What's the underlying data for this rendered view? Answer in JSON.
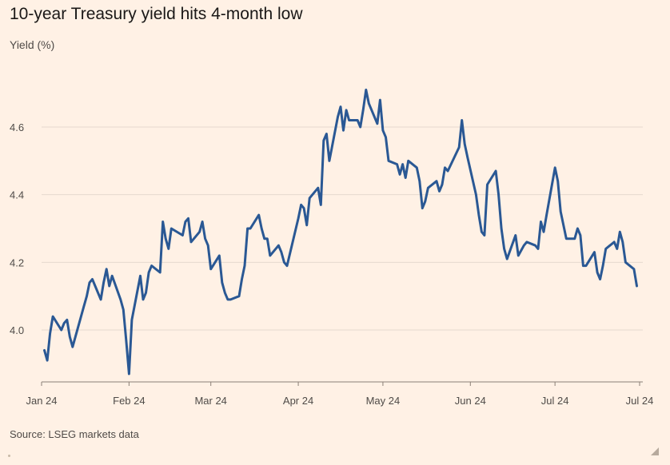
{
  "header": {
    "title": "10-year Treasury yield hits 4-month low",
    "subtitle": "Yield (%)"
  },
  "footer": {
    "source": "Source: LSEG markets data"
  },
  "icons": [
    "resize-handle-icon"
  ],
  "colors": {
    "background": "#fff1e5",
    "line": "#2a5894",
    "grid": "#e6d9ce",
    "axis": "#4f4b48"
  },
  "chart_data": {
    "type": "line",
    "title": "10-year Treasury yield hits 4-month low",
    "ylabel": "Yield (%)",
    "xlabel": "",
    "ylim": [
      3.86,
      4.72
    ],
    "y_ticks": [
      4.0,
      4.2,
      4.4,
      4.6
    ],
    "y_tick_labels": [
      "4.0",
      "4.2",
      "4.4",
      "4.6"
    ],
    "x_ticks": [
      {
        "label": "Jan 24",
        "date": "2024-01-01"
      },
      {
        "label": "Feb 24",
        "date": "2024-02-01"
      },
      {
        "label": "Mar 24",
        "date": "2024-03-01"
      },
      {
        "label": "Apr 24",
        "date": "2024-04-01"
      },
      {
        "label": "May 24",
        "date": "2024-05-01"
      },
      {
        "label": "Jun 24",
        "date": "2024-06-01"
      },
      {
        "label": "Jul 24",
        "date": "2024-07-01"
      },
      {
        "label": "Jul 24",
        "date": "2024-07-31"
      }
    ],
    "grid": true,
    "series": [
      {
        "points": [
          [
            "2024-01-02",
            3.94
          ],
          [
            "2024-01-03",
            3.91
          ],
          [
            "2024-01-04",
            3.99
          ],
          [
            "2024-01-05",
            4.04
          ],
          [
            "2024-01-08",
            4.0
          ],
          [
            "2024-01-09",
            4.02
          ],
          [
            "2024-01-10",
            4.03
          ],
          [
            "2024-01-11",
            3.98
          ],
          [
            "2024-01-12",
            3.95
          ],
          [
            "2024-01-16",
            4.07
          ],
          [
            "2024-01-17",
            4.1
          ],
          [
            "2024-01-18",
            4.14
          ],
          [
            "2024-01-19",
            4.15
          ],
          [
            "2024-01-22",
            4.09
          ],
          [
            "2024-01-23",
            4.14
          ],
          [
            "2024-01-24",
            4.18
          ],
          [
            "2024-01-25",
            4.13
          ],
          [
            "2024-01-26",
            4.16
          ],
          [
            "2024-01-29",
            4.09
          ],
          [
            "2024-01-30",
            4.06
          ],
          [
            "2024-01-31",
            3.97
          ],
          [
            "2024-02-01",
            3.87
          ],
          [
            "2024-02-02",
            4.03
          ],
          [
            "2024-02-05",
            4.16
          ],
          [
            "2024-02-06",
            4.09
          ],
          [
            "2024-02-07",
            4.11
          ],
          [
            "2024-02-08",
            4.17
          ],
          [
            "2024-02-09",
            4.19
          ],
          [
            "2024-02-12",
            4.17
          ],
          [
            "2024-02-13",
            4.32
          ],
          [
            "2024-02-14",
            4.27
          ],
          [
            "2024-02-15",
            4.24
          ],
          [
            "2024-02-16",
            4.3
          ],
          [
            "2024-02-20",
            4.28
          ],
          [
            "2024-02-21",
            4.32
          ],
          [
            "2024-02-22",
            4.33
          ],
          [
            "2024-02-23",
            4.26
          ],
          [
            "2024-02-26",
            4.29
          ],
          [
            "2024-02-27",
            4.32
          ],
          [
            "2024-02-28",
            4.27
          ],
          [
            "2024-02-29",
            4.25
          ],
          [
            "2024-03-01",
            4.18
          ],
          [
            "2024-03-04",
            4.22
          ],
          [
            "2024-03-05",
            4.14
          ],
          [
            "2024-03-06",
            4.11
          ],
          [
            "2024-03-07",
            4.09
          ],
          [
            "2024-03-08",
            4.09
          ],
          [
            "2024-03-11",
            4.1
          ],
          [
            "2024-03-12",
            4.15
          ],
          [
            "2024-03-13",
            4.19
          ],
          [
            "2024-03-14",
            4.3
          ],
          [
            "2024-03-15",
            4.3
          ],
          [
            "2024-03-18",
            4.34
          ],
          [
            "2024-03-19",
            4.3
          ],
          [
            "2024-03-20",
            4.27
          ],
          [
            "2024-03-21",
            4.27
          ],
          [
            "2024-03-22",
            4.22
          ],
          [
            "2024-03-25",
            4.25
          ],
          [
            "2024-03-26",
            4.23
          ],
          [
            "2024-03-27",
            4.2
          ],
          [
            "2024-03-28",
            4.19
          ],
          [
            "2024-04-01",
            4.33
          ],
          [
            "2024-04-02",
            4.37
          ],
          [
            "2024-04-03",
            4.36
          ],
          [
            "2024-04-04",
            4.31
          ],
          [
            "2024-04-05",
            4.39
          ],
          [
            "2024-04-08",
            4.42
          ],
          [
            "2024-04-09",
            4.37
          ],
          [
            "2024-04-10",
            4.56
          ],
          [
            "2024-04-11",
            4.58
          ],
          [
            "2024-04-12",
            4.5
          ],
          [
            "2024-04-15",
            4.63
          ],
          [
            "2024-04-16",
            4.66
          ],
          [
            "2024-04-17",
            4.59
          ],
          [
            "2024-04-18",
            4.65
          ],
          [
            "2024-04-19",
            4.62
          ],
          [
            "2024-04-22",
            4.62
          ],
          [
            "2024-04-23",
            4.6
          ],
          [
            "2024-04-24",
            4.65
          ],
          [
            "2024-04-25",
            4.71
          ],
          [
            "2024-04-26",
            4.67
          ],
          [
            "2024-04-29",
            4.61
          ],
          [
            "2024-04-30",
            4.68
          ],
          [
            "2024-05-01",
            4.59
          ],
          [
            "2024-05-02",
            4.57
          ],
          [
            "2024-05-03",
            4.5
          ],
          [
            "2024-05-06",
            4.49
          ],
          [
            "2024-05-07",
            4.46
          ],
          [
            "2024-05-08",
            4.49
          ],
          [
            "2024-05-09",
            4.45
          ],
          [
            "2024-05-10",
            4.5
          ],
          [
            "2024-05-13",
            4.48
          ],
          [
            "2024-05-14",
            4.44
          ],
          [
            "2024-05-15",
            4.36
          ],
          [
            "2024-05-16",
            4.38
          ],
          [
            "2024-05-17",
            4.42
          ],
          [
            "2024-05-20",
            4.44
          ],
          [
            "2024-05-21",
            4.41
          ],
          [
            "2024-05-22",
            4.43
          ],
          [
            "2024-05-23",
            4.48
          ],
          [
            "2024-05-24",
            4.47
          ],
          [
            "2024-05-28",
            4.54
          ],
          [
            "2024-05-29",
            4.62
          ],
          [
            "2024-05-30",
            4.55
          ],
          [
            "2024-05-31",
            4.51
          ],
          [
            "2024-06-03",
            4.4
          ],
          [
            "2024-06-04",
            4.34
          ],
          [
            "2024-06-05",
            4.29
          ],
          [
            "2024-06-06",
            4.28
          ],
          [
            "2024-06-07",
            4.43
          ],
          [
            "2024-06-10",
            4.47
          ],
          [
            "2024-06-11",
            4.4
          ],
          [
            "2024-06-12",
            4.3
          ],
          [
            "2024-06-13",
            4.24
          ],
          [
            "2024-06-14",
            4.21
          ],
          [
            "2024-06-17",
            4.28
          ],
          [
            "2024-06-18",
            4.22
          ],
          [
            "2024-06-20",
            4.25
          ],
          [
            "2024-06-21",
            4.26
          ],
          [
            "2024-06-24",
            4.25
          ],
          [
            "2024-06-25",
            4.24
          ],
          [
            "2024-06-26",
            4.32
          ],
          [
            "2024-06-27",
            4.29
          ],
          [
            "2024-06-28",
            4.34
          ],
          [
            "2024-07-01",
            4.48
          ],
          [
            "2024-07-02",
            4.44
          ],
          [
            "2024-07-03",
            4.35
          ],
          [
            "2024-07-05",
            4.27
          ],
          [
            "2024-07-08",
            4.27
          ],
          [
            "2024-07-09",
            4.3
          ],
          [
            "2024-07-10",
            4.28
          ],
          [
            "2024-07-11",
            4.19
          ],
          [
            "2024-07-12",
            4.19
          ],
          [
            "2024-07-15",
            4.23
          ],
          [
            "2024-07-16",
            4.17
          ],
          [
            "2024-07-17",
            4.15
          ],
          [
            "2024-07-18",
            4.19
          ],
          [
            "2024-07-19",
            4.24
          ],
          [
            "2024-07-22",
            4.26
          ],
          [
            "2024-07-23",
            4.24
          ],
          [
            "2024-07-24",
            4.29
          ],
          [
            "2024-07-25",
            4.26
          ],
          [
            "2024-07-26",
            4.2
          ],
          [
            "2024-07-29",
            4.18
          ],
          [
            "2024-07-30",
            4.13
          ]
        ]
      }
    ]
  }
}
